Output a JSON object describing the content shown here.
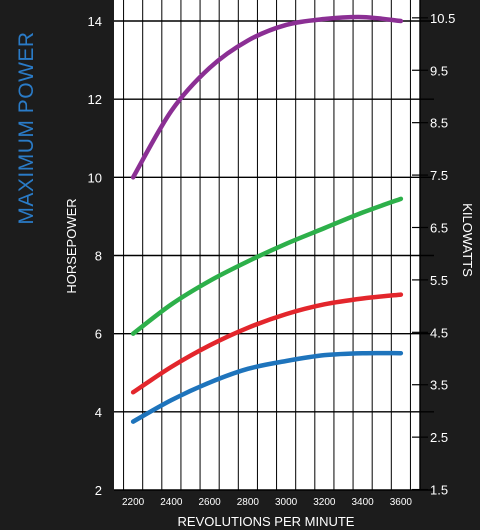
{
  "chart_data": {
    "type": "line",
    "title": "MAXIMUM POWER",
    "xlabel": "REVOLUTIONS PER MINUTE",
    "ylabel": "HORSEPOWER",
    "ylabel_right": "KILOWATTS",
    "x_ticks": [
      "2200",
      "2400",
      "2600",
      "2800",
      "3000",
      "3200",
      "3400",
      "3600"
    ],
    "y_ticks": [
      "2",
      "4",
      "6",
      "8",
      "10",
      "12",
      "14"
    ],
    "y2_ticks": [
      "1.5",
      "2.5",
      "3.5",
      "4.5",
      "5.5",
      "6.5",
      "7.5",
      "8.5",
      "9.5",
      "10.5"
    ],
    "xlim": [
      2100,
      3700
    ],
    "ylim": [
      2,
      14.5
    ],
    "grid": true,
    "series": [
      {
        "color": "#8b2f94",
        "x": [
          2200,
          2400,
          2600,
          2800,
          3000,
          3200,
          3400,
          3600
        ],
        "y": [
          10.0,
          11.7,
          12.8,
          13.5,
          13.9,
          14.05,
          14.1,
          14.0
        ]
      },
      {
        "color": "#2db04a",
        "x": [
          2200,
          2400,
          2600,
          2800,
          3000,
          3200,
          3400,
          3600
        ],
        "y": [
          6.0,
          6.75,
          7.35,
          7.85,
          8.3,
          8.7,
          9.1,
          9.45
        ]
      },
      {
        "color": "#e3262c",
        "x": [
          2200,
          2400,
          2600,
          2800,
          3000,
          3200,
          3400,
          3600
        ],
        "y": [
          4.5,
          5.15,
          5.7,
          6.15,
          6.5,
          6.75,
          6.9,
          7.0
        ]
      },
      {
        "color": "#1e74bc",
        "x": [
          2200,
          2400,
          2600,
          2800,
          3000,
          3200,
          3400,
          3600
        ],
        "y": [
          3.75,
          4.3,
          4.75,
          5.1,
          5.3,
          5.45,
          5.5,
          5.5
        ]
      }
    ]
  }
}
